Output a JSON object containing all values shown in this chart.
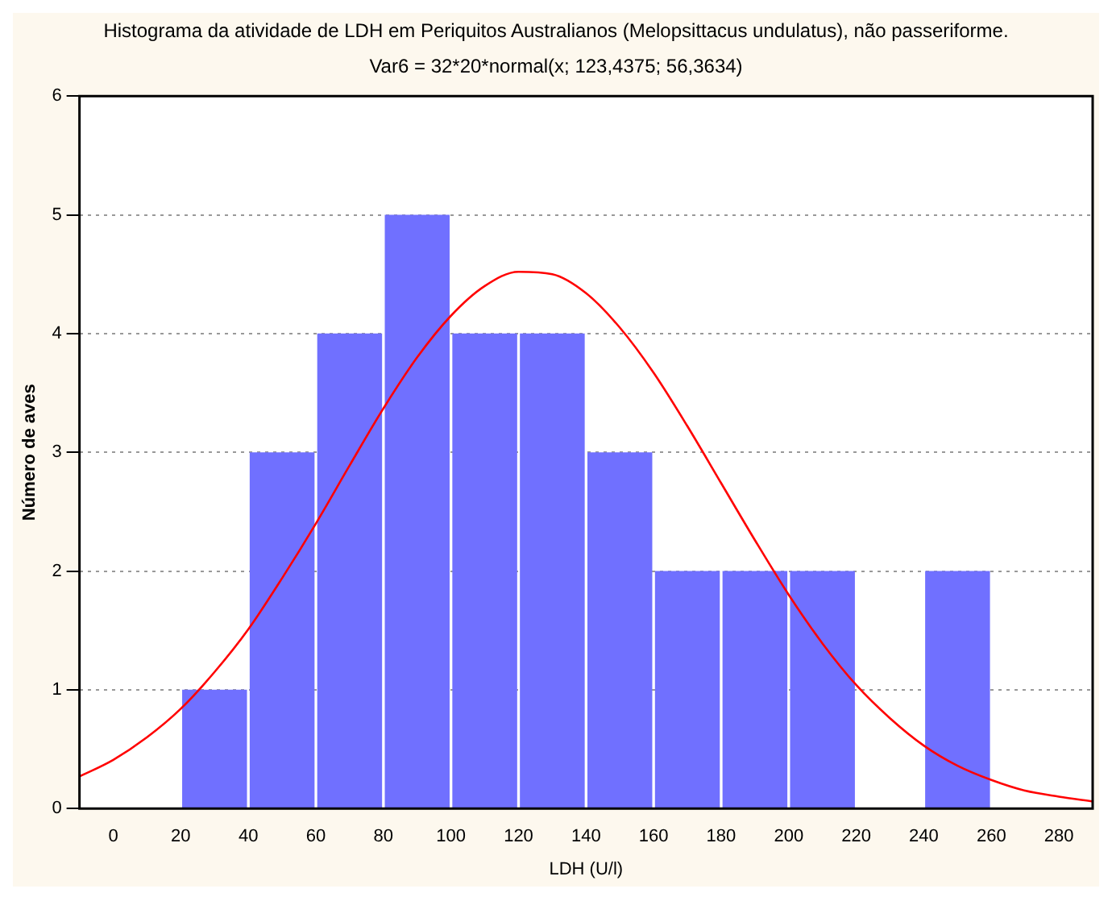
{
  "chart_data": {
    "type": "histogram",
    "title": "Histograma da atividade de LDH em Periquitos Australianos (Melopsittacus undulatus), não passeriforme.",
    "subtitle": "Var6 = 32*20*normal(x; 123,4375; 56,3634)",
    "xlabel": "LDH (U/l)",
    "ylabel": "Número de aves",
    "bins": [
      20,
      40,
      60,
      80,
      100,
      120,
      140,
      160,
      180,
      200,
      220,
      240,
      260
    ],
    "values": [
      1,
      3,
      4,
      5,
      4,
      4,
      3,
      2,
      2,
      2,
      0,
      2
    ],
    "color": "#7070ff",
    "series": [
      {
        "type": "line",
        "color": "#ff0000",
        "marker": "none",
        "x": [
          -10,
          0,
          10,
          20,
          30,
          40,
          50,
          60,
          70,
          80,
          90,
          100,
          110,
          120,
          130,
          140,
          150,
          160,
          170,
          180,
          190,
          200,
          210,
          220,
          230,
          240,
          250,
          260,
          270,
          280,
          290
        ],
        "values": [
          0.27,
          0.41,
          0.6,
          0.84,
          1.15,
          1.51,
          1.94,
          2.4,
          2.89,
          3.37,
          3.8,
          4.15,
          4.4,
          4.52,
          4.5,
          4.34,
          4.05,
          3.67,
          3.22,
          2.74,
          2.26,
          1.8,
          1.39,
          1.04,
          0.76,
          0.53,
          0.36,
          0.24,
          0.15,
          0.1,
          0.06
        ]
      }
    ],
    "xlim": [
      -10,
      290
    ],
    "xticks": [
      0,
      20,
      40,
      60,
      80,
      100,
      120,
      140,
      160,
      180,
      200,
      220,
      240,
      260,
      280
    ],
    "ylim": [
      0,
      6
    ],
    "yticks": [
      0,
      1,
      2,
      3,
      4,
      5,
      6
    ],
    "grid": "y",
    "legend": false
  }
}
